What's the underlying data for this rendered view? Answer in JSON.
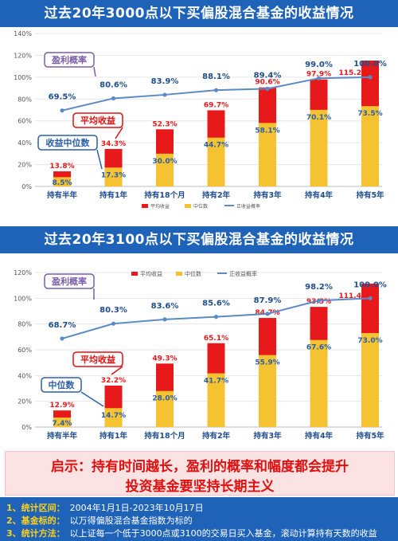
{
  "colors": {
    "red": "#e8191b",
    "yellow": "#f5c232",
    "line": "#5b8ac6",
    "banner": "#1e63b8",
    "emph": "#e01010"
  },
  "takeaway": {
    "prefix": "启示：",
    "line1": "持有时间越长，盈利的概率和幅度都会提升",
    "line2": "投资基金要坚持长期主义"
  },
  "notes": [
    {
      "num": "1、",
      "key": "统计区间：",
      "value": "2004年1月1日-2023年10月17日"
    },
    {
      "num": "2、",
      "key": "基金标的：",
      "value": "以万得偏股混合基金指数为标的"
    },
    {
      "num": "3、",
      "key": "统计方法：",
      "value": "以上证每一个低于3000点或3100的交易日买入基金，滚动计算持有天数的收益"
    }
  ],
  "chart_data": [
    {
      "type": "bar",
      "title": "过去20年3000点以下买偏股混合基金的收益情况",
      "categories": [
        "持有半年",
        "持有1年",
        "持有18个月",
        "持有2年",
        "持有3年",
        "持有4年",
        "持有5年"
      ],
      "series": [
        {
          "name": "平均收益",
          "values": [
            13.8,
            34.3,
            52.3,
            69.7,
            90.6,
            97.9,
            115.2
          ]
        },
        {
          "name": "中位数",
          "values": [
            8.5,
            17.3,
            30.0,
            44.7,
            58.1,
            70.1,
            73.5
          ]
        },
        {
          "name": "正收益概率",
          "values": [
            69.5,
            80.6,
            83.9,
            88.1,
            89.4,
            99.0,
            100.0
          ]
        }
      ],
      "value_labels": {
        "avg": [
          "13.8%",
          "34.3%",
          "52.3%",
          "69.7%",
          "90.6%",
          "97.9%",
          "115.2%"
        ],
        "median": [
          "8.5%",
          "17.3%",
          "30.0%",
          "44.7%",
          "58.1%",
          "70.1%",
          "73.5%"
        ],
        "prob": [
          "69.5%",
          "80.6%",
          "83.9%",
          "88.1%",
          "89.4%",
          "99.0%",
          "100.0%"
        ]
      },
      "yticks": [
        "0%",
        "20%",
        "40%",
        "60%",
        "80%",
        "100%",
        "120%",
        "140%"
      ],
      "ylim": [
        0,
        140
      ],
      "legend_position": "bottom",
      "callouts": [
        "盈利概率",
        "平均收益",
        "收益中位数"
      ]
    },
    {
      "type": "bar",
      "title": "过去20年3100点以下买偏股混合基金的收益情况",
      "categories": [
        "持有半年",
        "持有1年",
        "持有18个月",
        "持有2年",
        "持有3年",
        "持有4年",
        "持有5年"
      ],
      "series": [
        {
          "name": "平均收益",
          "values": [
            12.9,
            32.2,
            49.3,
            65.1,
            84.7,
            93.3,
            111.4
          ]
        },
        {
          "name": "中位数",
          "values": [
            7.4,
            14.7,
            28.0,
            41.7,
            55.9,
            67.6,
            73.0
          ]
        },
        {
          "name": "正收益概率",
          "values": [
            68.7,
            80.3,
            83.6,
            85.6,
            87.9,
            98.2,
            100.0
          ]
        }
      ],
      "value_labels": {
        "avg": [
          "12.9%",
          "32.2%",
          "49.3%",
          "65.1%",
          "84.7%",
          "93.3%",
          "111.4%"
        ],
        "median": [
          "7.4%",
          "14.7%",
          "28.0%",
          "41.7%",
          "55.9%",
          "67.6%",
          "73.0%"
        ],
        "prob": [
          "68.7%",
          "80.3%",
          "83.6%",
          "85.6%",
          "87.9%",
          "98.2%",
          "100.0%"
        ]
      },
      "yticks": [
        "0%",
        "20%",
        "40%",
        "60%",
        "80%",
        "100%",
        "120%"
      ],
      "ylim": [
        0,
        120
      ],
      "legend_position": "top",
      "callouts": [
        "盈利概率",
        "平均收益",
        "中位数"
      ]
    }
  ]
}
